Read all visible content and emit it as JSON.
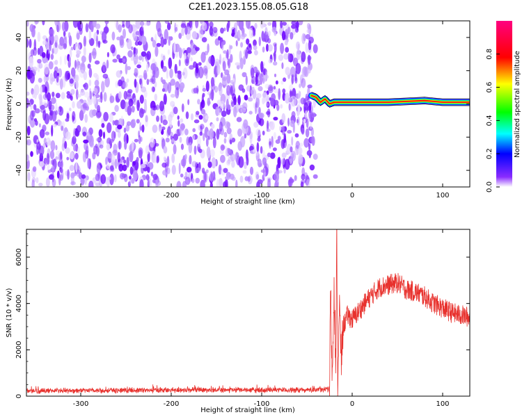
{
  "title": "C2E1.2023.155.08.05.G18",
  "chart_data": [
    {
      "type": "heatmap",
      "xlabel": "Height of straight line (km)",
      "ylabel": "Frequency (Hz)",
      "xlim": [
        -360,
        130
      ],
      "ylim": [
        -50,
        50
      ],
      "xticks": [
        -300,
        -200,
        -100,
        0,
        100
      ],
      "yticks": [
        -40,
        -20,
        0,
        20,
        40
      ],
      "noise_region_x": [
        -360,
        -45
      ],
      "signal_trace": {
        "x": [
          -45,
          -40,
          -35,
          -30,
          -25,
          -20,
          -15,
          -10,
          0,
          20,
          40,
          60,
          80,
          90,
          100,
          110,
          130
        ],
        "y": [
          5,
          4,
          1,
          3,
          0,
          1,
          1,
          1,
          1,
          1,
          1,
          1.5,
          2,
          1.5,
          1,
          1,
          1
        ]
      },
      "colorbar": {
        "label": "Normalized spectral amplitude",
        "range": [
          0,
          1
        ],
        "ticks": [
          0.0,
          0.2,
          0.4,
          0.6,
          0.8
        ],
        "colormap": [
          "#ffffff",
          "#6a00ff",
          "#0000ff",
          "#00ffff",
          "#00ff00",
          "#ffff00",
          "#ff0000",
          "#ff0080"
        ]
      },
      "grid": false
    },
    {
      "type": "line",
      "xlabel": "Height of straight line (km)",
      "ylabel": "SNR (10 * v/v)",
      "xlim": [
        -360,
        130
      ],
      "ylim": [
        0,
        7200
      ],
      "xticks": [
        -300,
        -200,
        -100,
        0,
        100
      ],
      "yticks": [
        0,
        2000,
        4000,
        6000
      ],
      "series": [
        {
          "color": "#e8312d",
          "x": [
            -360,
            -300,
            -250,
            -200,
            -150,
            -100,
            -50,
            -25,
            -24,
            -22,
            -20,
            -18,
            -17,
            -16,
            -14,
            -12,
            -10,
            -5,
            0,
            10,
            20,
            30,
            40,
            50,
            60,
            70,
            80,
            90,
            100,
            110,
            120,
            130
          ],
          "y": [
            230,
            240,
            250,
            260,
            270,
            260,
            260,
            300,
            4800,
            700,
            5000,
            1000,
            7200,
            700,
            3800,
            1500,
            3000,
            3500,
            3300,
            3800,
            4300,
            4700,
            4800,
            4900,
            4600,
            4500,
            4300,
            4000,
            3800,
            3600,
            3500,
            3400
          ]
        }
      ],
      "grid": false
    }
  ]
}
